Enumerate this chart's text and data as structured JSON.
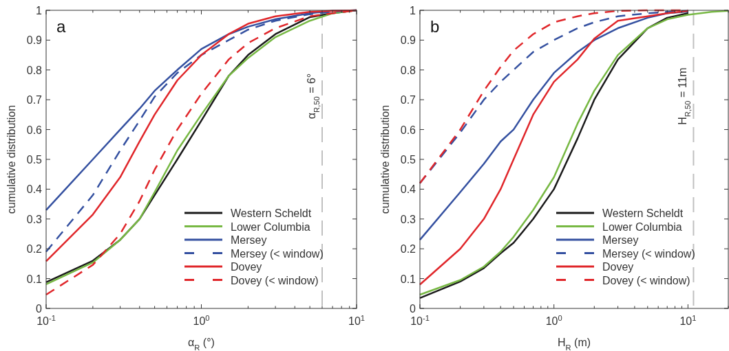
{
  "chart_data": [
    {
      "type": "line",
      "title": "a",
      "xlabel": "α$_{R}$ (°)",
      "ylabel": "cumulative distribution",
      "log": "x",
      "xlim": [
        0.1,
        10
      ],
      "xticks": [
        {
          "value": 0.1,
          "label": "10$^{-1}$"
        },
        {
          "value": 0.2,
          "label": null
        },
        {
          "value": 0.3,
          "label": null
        },
        {
          "value": 0.4,
          "label": null
        },
        {
          "value": 0.5,
          "label": null
        },
        {
          "value": 0.6,
          "label": null
        },
        {
          "value": 0.7,
          "label": null
        },
        {
          "value": 0.8,
          "label": null
        },
        {
          "value": 0.9,
          "label": null
        },
        {
          "value": 1,
          "label": "10$^{0}$"
        },
        {
          "value": 2,
          "label": null
        },
        {
          "value": 3,
          "label": null
        },
        {
          "value": 4,
          "label": null
        },
        {
          "value": 5,
          "label": null
        },
        {
          "value": 6,
          "label": null
        },
        {
          "value": 7,
          "label": null
        },
        {
          "value": 8,
          "label": null
        },
        {
          "value": 9,
          "label": null
        },
        {
          "value": 10,
          "label": "10$^{1}$"
        }
      ],
      "ylim": [
        0,
        1
      ],
      "yticks": [
        0,
        0.1,
        0.2,
        0.3,
        0.4,
        0.5,
        0.6,
        0.7,
        0.8,
        0.9,
        1
      ],
      "grid": false,
      "legend": "bottom right",
      "x": [
        0.1,
        0.2,
        0.3,
        0.4,
        0.5,
        0.7,
        1,
        1.5,
        2,
        3,
        5,
        7,
        10
      ],
      "series": [
        {
          "name": "Western Scheldt",
          "color": "#1a1a1a",
          "line_style": "solid",
          "values": [
            0.088,
            0.16,
            0.23,
            0.3,
            0.38,
            0.5,
            0.63,
            0.78,
            0.85,
            0.92,
            0.977,
            0.99,
            1
          ]
        },
        {
          "name": "Lower Columbia",
          "color": "#77b843",
          "line_style": "solid",
          "values": [
            0.081,
            0.154,
            0.23,
            0.3,
            0.39,
            0.53,
            0.65,
            0.78,
            0.84,
            0.91,
            0.965,
            0.99,
            1
          ]
        },
        {
          "name": "Mersey",
          "color": "#3450a0",
          "line_style": "solid",
          "values": [
            0.33,
            0.5,
            0.6,
            0.67,
            0.73,
            0.8,
            0.87,
            0.92,
            0.945,
            0.97,
            0.99,
            0.998,
            1
          ]
        },
        {
          "name": "Mersey (< window)",
          "color": "#3450a0",
          "line_style": "dashed",
          "values": [
            0.19,
            0.38,
            0.53,
            0.63,
            0.71,
            0.79,
            0.85,
            0.9,
            0.935,
            0.965,
            0.987,
            0.995,
            1
          ]
        },
        {
          "name": "Dovey",
          "color": "#e0262a",
          "line_style": "solid",
          "values": [
            0.158,
            0.315,
            0.44,
            0.56,
            0.65,
            0.765,
            0.85,
            0.92,
            0.955,
            0.98,
            0.995,
            0.998,
            1
          ]
        },
        {
          "name": "Dovey (< window)",
          "color": "#e0262a",
          "line_style": "dashed",
          "values": [
            0.046,
            0.146,
            0.25,
            0.36,
            0.465,
            0.6,
            0.72,
            0.835,
            0.89,
            0.94,
            0.98,
            0.99,
            1
          ]
        }
      ],
      "ref_lines": [
        {
          "axis": "x",
          "value": 6,
          "label": "α$_{R,50}$ = 6°",
          "color": "#c0c0c0",
          "line_style": "dashed"
        }
      ]
    },
    {
      "type": "line",
      "title": "b",
      "xlabel": "H$_{R}$ (m)",
      "ylabel": "cumulative distribution",
      "log": "x",
      "xlim": [
        0.1,
        20
      ],
      "xticks": [
        {
          "value": 0.1,
          "label": "10$^{-1}$"
        },
        {
          "value": 0.2,
          "label": null
        },
        {
          "value": 0.3,
          "label": null
        },
        {
          "value": 0.4,
          "label": null
        },
        {
          "value": 0.5,
          "label": null
        },
        {
          "value": 0.6,
          "label": null
        },
        {
          "value": 0.7,
          "label": null
        },
        {
          "value": 0.8,
          "label": null
        },
        {
          "value": 0.9,
          "label": null
        },
        {
          "value": 1,
          "label": "10$^{0}$"
        },
        {
          "value": 2,
          "label": null
        },
        {
          "value": 3,
          "label": null
        },
        {
          "value": 4,
          "label": null
        },
        {
          "value": 5,
          "label": null
        },
        {
          "value": 6,
          "label": null
        },
        {
          "value": 7,
          "label": null
        },
        {
          "value": 8,
          "label": null
        },
        {
          "value": 9,
          "label": null
        },
        {
          "value": 10,
          "label": "10$^{1}$"
        },
        {
          "value": 20,
          "label": null
        }
      ],
      "ylim": [
        0,
        1
      ],
      "yticks": [
        0,
        0.1,
        0.2,
        0.3,
        0.4,
        0.5,
        0.6,
        0.7,
        0.8,
        0.9,
        1
      ],
      "grid": false,
      "legend": "bottom right",
      "x": [
        0.1,
        0.2,
        0.3,
        0.4,
        0.5,
        0.7,
        1,
        1.5,
        2,
        3,
        5,
        7,
        10
      ],
      "series": [
        {
          "name": "Western Scheldt",
          "color": "#1a1a1a",
          "line_style": "solid",
          "values": [
            0.035,
            0.09,
            0.135,
            0.185,
            0.22,
            0.3,
            0.4,
            0.57,
            0.7,
            0.835,
            0.94,
            0.975,
            0.99
          ]
        },
        {
          "name": "Lower Columbia",
          "color": "#77b843",
          "line_style": "solid",
          "x": [
            0.1,
            0.2,
            0.3,
            0.4,
            0.5,
            0.7,
            1,
            1.5,
            2,
            3,
            5,
            7,
            10,
            15,
            20
          ],
          "values": [
            0.046,
            0.095,
            0.14,
            0.19,
            0.24,
            0.33,
            0.44,
            0.62,
            0.73,
            0.85,
            0.94,
            0.97,
            0.985,
            0.995,
            0.998
          ]
        },
        {
          "name": "Mersey",
          "color": "#3450a0",
          "line_style": "solid",
          "values": [
            0.23,
            0.39,
            0.485,
            0.56,
            0.6,
            0.7,
            0.79,
            0.86,
            0.9,
            0.94,
            0.975,
            0.99,
            0.996
          ]
        },
        {
          "name": "Mersey (< window)",
          "color": "#3450a0",
          "line_style": "dashed",
          "values": [
            0.42,
            0.59,
            0.7,
            0.76,
            0.8,
            0.86,
            0.9,
            0.94,
            0.96,
            0.98,
            0.99,
            0.995,
            0.998
          ]
        },
        {
          "name": "Dovey",
          "color": "#e0262a",
          "line_style": "solid",
          "values": [
            0.08,
            0.2,
            0.3,
            0.4,
            0.5,
            0.65,
            0.76,
            0.835,
            0.905,
            0.965,
            0.98,
            0.99,
            0.998
          ]
        },
        {
          "name": "Dovey (< window)",
          "color": "#e0262a",
          "line_style": "dashed",
          "values": [
            0.42,
            0.6,
            0.73,
            0.81,
            0.865,
            0.92,
            0.96,
            0.98,
            0.99,
            0.998,
            1,
            1,
            1
          ]
        }
      ],
      "ref_lines": [
        {
          "axis": "x",
          "value": 11,
          "label": "H$_{R,50}$ = 11m",
          "color": "#c0c0c0",
          "line_style": "dashed"
        }
      ]
    }
  ]
}
